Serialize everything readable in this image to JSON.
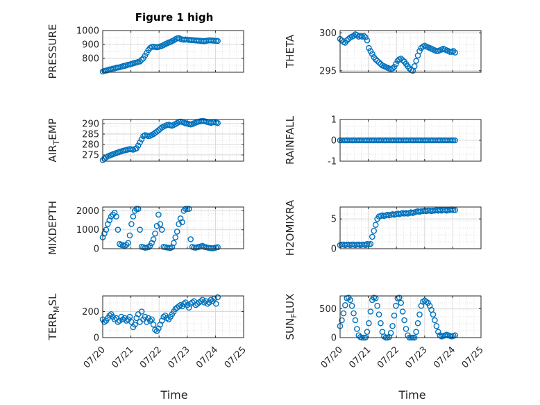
{
  "figure": {
    "title": "Figure 1 high",
    "xlabel": "Time"
  },
  "colors": {
    "marker": "#0072BD",
    "grid": "#d9d9d9",
    "axis": "#262626"
  },
  "chart_data": [
    {
      "type": "scatter",
      "panel": "pressure",
      "ylabel_main": "PRESSURE",
      "ylabel_sub": "",
      "ylabel_tail": "",
      "ylim": [
        700,
        1000
      ],
      "yticks": [
        "1000",
        "900",
        "800"
      ],
      "ytick_values": [
        1000,
        900,
        800
      ],
      "xlim": [
        0,
        5
      ],
      "xticks": [],
      "grid": true,
      "x": [
        0.0,
        0.06,
        0.12,
        0.18,
        0.24,
        0.3,
        0.36,
        0.42,
        0.48,
        0.54,
        0.6,
        0.66,
        0.72,
        0.78,
        0.84,
        0.9,
        0.96,
        1.02,
        1.08,
        1.14,
        1.2,
        1.26,
        1.32,
        1.38,
        1.44,
        1.5,
        1.56,
        1.62,
        1.68,
        1.74,
        1.8,
        1.86,
        1.92,
        1.98,
        2.04,
        2.1,
        2.16,
        2.22,
        2.28,
        2.34,
        2.4,
        2.46,
        2.52,
        2.58,
        2.64,
        2.7,
        2.76,
        2.82,
        2.88,
        2.94,
        3.0,
        3.06,
        3.12,
        3.18,
        3.24,
        3.3,
        3.36,
        3.42,
        3.48,
        3.54,
        3.6,
        3.66,
        3.72,
        3.78,
        3.84,
        3.9,
        3.96,
        4.02,
        4.08
      ],
      "y": [
        705,
        710,
        712,
        716,
        720,
        722,
        726,
        728,
        732,
        734,
        736,
        740,
        744,
        746,
        750,
        754,
        756,
        760,
        764,
        768,
        770,
        775,
        778,
        790,
        800,
        820,
        840,
        860,
        875,
        882,
        884,
        882,
        880,
        882,
        886,
        890,
        896,
        902,
        908,
        914,
        918,
        924,
        930,
        938,
        944,
        946,
        940,
        936,
        934,
        936,
        935,
        933,
        932,
        931,
        930,
        929,
        928,
        927,
        926,
        925,
        924,
        926,
        928,
        930,
        929,
        928,
        927,
        926,
        925
      ]
    },
    {
      "type": "scatter",
      "panel": "theta",
      "ylabel_main": "THETA",
      "ylabel_sub": "",
      "ylabel_tail": "",
      "ylim": [
        294.8,
        300.3
      ],
      "yticks": [
        "300",
        "295"
      ],
      "ytick_values": [
        300,
        295
      ],
      "xlim": [
        0,
        5
      ],
      "xticks": [],
      "grid": true,
      "x": [
        0.0,
        0.06,
        0.12,
        0.18,
        0.24,
        0.3,
        0.36,
        0.42,
        0.48,
        0.54,
        0.6,
        0.66,
        0.72,
        0.78,
        0.84,
        0.9,
        0.96,
        1.02,
        1.08,
        1.14,
        1.2,
        1.26,
        1.32,
        1.38,
        1.44,
        1.5,
        1.56,
        1.62,
        1.68,
        1.74,
        1.8,
        1.86,
        1.92,
        1.98,
        2.04,
        2.1,
        2.16,
        2.22,
        2.28,
        2.34,
        2.4,
        2.46,
        2.52,
        2.58,
        2.64,
        2.7,
        2.76,
        2.82,
        2.88,
        2.94,
        3.0,
        3.06,
        3.12,
        3.18,
        3.24,
        3.3,
        3.36,
        3.42,
        3.48,
        3.54,
        3.6,
        3.66,
        3.72,
        3.78,
        3.84,
        3.9,
        3.96,
        4.02,
        4.08
      ],
      "y": [
        299.2,
        299.0,
        298.8,
        298.7,
        299.0,
        299.2,
        299.4,
        299.5,
        299.6,
        299.8,
        299.7,
        299.5,
        299.6,
        299.5,
        299.6,
        299.4,
        299.0,
        298.0,
        297.6,
        297.2,
        296.8,
        296.5,
        296.3,
        296.1,
        295.9,
        295.7,
        295.6,
        295.5,
        295.4,
        295.3,
        295.2,
        295.3,
        295.5,
        295.9,
        296.3,
        296.5,
        296.6,
        296.4,
        296.2,
        295.9,
        295.6,
        295.3,
        295.1,
        295.0,
        295.6,
        296.3,
        297.0,
        297.6,
        298.0,
        298.2,
        298.3,
        298.2,
        298.1,
        298.0,
        297.9,
        297.8,
        297.7,
        297.6,
        297.6,
        297.7,
        297.8,
        297.9,
        297.8,
        297.7,
        297.6,
        297.5,
        297.5,
        297.6,
        297.4
      ]
    },
    {
      "type": "scatter",
      "panel": "air_temp",
      "ylabel_main": "AIR",
      "ylabel_sub": "T",
      "ylabel_tail": "EMP",
      "ylim": [
        272,
        292
      ],
      "yticks": [
        "290",
        "285",
        "280",
        "275"
      ],
      "ytick_values": [
        290,
        285,
        280,
        275
      ],
      "xlim": [
        0,
        5
      ],
      "xticks": [],
      "grid": true,
      "x": [
        0.0,
        0.06,
        0.12,
        0.18,
        0.24,
        0.3,
        0.36,
        0.42,
        0.48,
        0.54,
        0.6,
        0.66,
        0.72,
        0.78,
        0.84,
        0.9,
        0.96,
        1.02,
        1.08,
        1.14,
        1.2,
        1.26,
        1.32,
        1.38,
        1.44,
        1.5,
        1.56,
        1.62,
        1.68,
        1.74,
        1.8,
        1.86,
        1.92,
        1.98,
        2.04,
        2.1,
        2.16,
        2.22,
        2.28,
        2.34,
        2.4,
        2.46,
        2.52,
        2.58,
        2.64,
        2.7,
        2.76,
        2.82,
        2.88,
        2.94,
        3.0,
        3.06,
        3.12,
        3.18,
        3.24,
        3.3,
        3.36,
        3.42,
        3.48,
        3.54,
        3.6,
        3.66,
        3.72,
        3.78,
        3.84,
        3.9,
        3.96,
        4.02,
        4.08
      ],
      "y": [
        272.5,
        273.2,
        273.8,
        274.3,
        274.7,
        275.0,
        275.3,
        275.6,
        275.9,
        276.2,
        276.5,
        276.7,
        277.0,
        277.2,
        277.4,
        277.6,
        277.8,
        277.7,
        277.5,
        277.8,
        278.2,
        279.5,
        281.0,
        282.5,
        284.0,
        284.5,
        284.3,
        284.0,
        284.2,
        284.6,
        285.0,
        285.6,
        286.2,
        286.8,
        287.5,
        288.2,
        288.6,
        289.0,
        289.3,
        289.5,
        289.2,
        289.0,
        289.4,
        289.8,
        290.3,
        290.8,
        291.0,
        290.8,
        290.5,
        290.2,
        290.0,
        289.8,
        289.6,
        289.8,
        290.2,
        290.5,
        290.8,
        291.0,
        291.2,
        291.3,
        291.2,
        291.0,
        290.8,
        290.6,
        290.4,
        290.6,
        290.8,
        290.5,
        290.3
      ]
    },
    {
      "type": "scatter",
      "panel": "rainfall",
      "ylabel_main": "RAINFALL",
      "ylabel_sub": "",
      "ylabel_tail": "",
      "ylim": [
        -1,
        1
      ],
      "yticks": [
        "1",
        "0",
        "-1"
      ],
      "ytick_values": [
        1,
        0,
        -1
      ],
      "xlim": [
        0,
        5
      ],
      "xticks": [],
      "grid": true,
      "x": [
        0.0,
        0.06,
        0.12,
        0.18,
        0.24,
        0.3,
        0.36,
        0.42,
        0.48,
        0.54,
        0.6,
        0.66,
        0.72,
        0.78,
        0.84,
        0.9,
        0.96,
        1.02,
        1.08,
        1.14,
        1.2,
        1.26,
        1.32,
        1.38,
        1.44,
        1.5,
        1.56,
        1.62,
        1.68,
        1.74,
        1.8,
        1.86,
        1.92,
        1.98,
        2.04,
        2.1,
        2.16,
        2.22,
        2.28,
        2.34,
        2.4,
        2.46,
        2.52,
        2.58,
        2.64,
        2.7,
        2.76,
        2.82,
        2.88,
        2.94,
        3.0,
        3.06,
        3.12,
        3.18,
        3.24,
        3.3,
        3.36,
        3.42,
        3.48,
        3.54,
        3.6,
        3.66,
        3.72,
        3.78,
        3.84,
        3.9,
        3.96,
        4.02,
        4.08
      ],
      "y": [
        0,
        0,
        0,
        0,
        0,
        0,
        0,
        0,
        0,
        0,
        0,
        0,
        0,
        0,
        0,
        0,
        0,
        0,
        0,
        0,
        0,
        0,
        0,
        0,
        0,
        0,
        0,
        0,
        0,
        0,
        0,
        0,
        0,
        0,
        0,
        0,
        0,
        0,
        0,
        0,
        0,
        0,
        0,
        0,
        0,
        0,
        0,
        0,
        0,
        0,
        0,
        0,
        0,
        0,
        0,
        0,
        0,
        0,
        0,
        0,
        0,
        0,
        0,
        0,
        0,
        0,
        0,
        0,
        0
      ]
    },
    {
      "type": "scatter",
      "panel": "mixdepth",
      "ylabel_main": "MIXDEPTH",
      "ylabel_sub": "",
      "ylabel_tail": "",
      "ylim": [
        0,
        2200
      ],
      "yticks": [
        "2000",
        "1000",
        "0"
      ],
      "ytick_values": [
        2000,
        1000,
        0
      ],
      "xlim": [
        0,
        5
      ],
      "xticks": [],
      "grid": true,
      "x": [
        0.0,
        0.06,
        0.12,
        0.18,
        0.24,
        0.3,
        0.36,
        0.42,
        0.48,
        0.54,
        0.6,
        0.66,
        0.72,
        0.78,
        0.84,
        0.9,
        0.96,
        1.02,
        1.08,
        1.14,
        1.2,
        1.26,
        1.32,
        1.38,
        1.44,
        1.5,
        1.56,
        1.62,
        1.68,
        1.74,
        1.8,
        1.86,
        1.92,
        1.98,
        2.04,
        2.1,
        2.16,
        2.22,
        2.28,
        2.34,
        2.4,
        2.46,
        2.52,
        2.58,
        2.64,
        2.7,
        2.76,
        2.82,
        2.88,
        2.94,
        3.0,
        3.06,
        3.12,
        3.18,
        3.24,
        3.3,
        3.36,
        3.42,
        3.48,
        3.54,
        3.6,
        3.66,
        3.72,
        3.78,
        3.84,
        3.9,
        3.96,
        4.02,
        4.08
      ],
      "y": [
        600,
        800,
        1000,
        1300,
        1500,
        1700,
        1800,
        1900,
        1700,
        1000,
        250,
        200,
        180,
        150,
        200,
        300,
        700,
        1300,
        1700,
        2000,
        2100,
        2100,
        1000,
        100,
        80,
        50,
        60,
        80,
        150,
        300,
        500,
        800,
        1200,
        1800,
        1300,
        1000,
        100,
        80,
        60,
        50,
        40,
        80,
        300,
        600,
        900,
        1300,
        1600,
        1400,
        2000,
        2100,
        2100,
        2100,
        500,
        100,
        60,
        50,
        80,
        100,
        120,
        150,
        100,
        80,
        60,
        40,
        30,
        20,
        40,
        60,
        80
      ]
    },
    {
      "type": "scatter",
      "panel": "h2omixra",
      "ylabel_main": "H2OMIXRA",
      "ylabel_sub": "",
      "ylabel_tail": "",
      "ylim": [
        0,
        7
      ],
      "yticks": [
        "5",
        "0"
      ],
      "ytick_values": [
        5,
        0
      ],
      "xlim": [
        0,
        5
      ],
      "xticks": [],
      "grid": true,
      "x": [
        0.0,
        0.06,
        0.12,
        0.18,
        0.24,
        0.3,
        0.36,
        0.42,
        0.48,
        0.54,
        0.6,
        0.66,
        0.72,
        0.78,
        0.84,
        0.9,
        0.96,
        1.02,
        1.08,
        1.14,
        1.2,
        1.26,
        1.32,
        1.38,
        1.44,
        1.5,
        1.56,
        1.62,
        1.68,
        1.74,
        1.8,
        1.86,
        1.92,
        1.98,
        2.04,
        2.1,
        2.16,
        2.22,
        2.28,
        2.34,
        2.4,
        2.46,
        2.52,
        2.58,
        2.64,
        2.7,
        2.76,
        2.82,
        2.88,
        2.94,
        3.0,
        3.06,
        3.12,
        3.18,
        3.24,
        3.3,
        3.36,
        3.42,
        3.48,
        3.54,
        3.6,
        3.66,
        3.72,
        3.78,
        3.84,
        3.9,
        3.96,
        4.02,
        4.08
      ],
      "y": [
        0.6,
        0.7,
        0.7,
        0.6,
        0.7,
        0.7,
        0.6,
        0.7,
        0.7,
        0.6,
        0.7,
        0.7,
        0.6,
        0.7,
        0.7,
        0.6,
        0.8,
        0.7,
        0.8,
        2.0,
        3.0,
        4.0,
        5.0,
        5.4,
        5.5,
        5.6,
        5.5,
        5.6,
        5.7,
        5.6,
        5.7,
        5.8,
        5.7,
        5.8,
        5.9,
        5.8,
        5.9,
        6.0,
        5.9,
        6.0,
        5.9,
        6.0,
        6.1,
        6.0,
        6.1,
        6.2,
        6.3,
        6.2,
        6.3,
        6.3,
        6.4,
        6.3,
        6.4,
        6.4,
        6.3,
        6.4,
        6.4,
        6.5,
        6.4,
        6.5,
        6.4,
        6.5,
        6.5,
        6.4,
        6.5,
        6.5,
        6.6,
        6.5,
        6.5
      ]
    },
    {
      "type": "scatter",
      "panel": "terr_msl",
      "ylabel_main": "TERR",
      "ylabel_sub": "M",
      "ylabel_tail": "SL",
      "ylim": [
        0,
        320
      ],
      "yticks": [
        "200",
        "0"
      ],
      "ytick_values": [
        200,
        0
      ],
      "xlim": [
        0,
        5
      ],
      "xticks": [
        "07/20",
        "07/21",
        "07/22",
        "07/23",
        "07/24",
        "07/25"
      ],
      "xtick_values": [
        0,
        1,
        2,
        3,
        4,
        5
      ],
      "grid": true,
      "x": [
        0.0,
        0.06,
        0.12,
        0.18,
        0.24,
        0.3,
        0.36,
        0.42,
        0.48,
        0.54,
        0.6,
        0.66,
        0.72,
        0.78,
        0.84,
        0.9,
        0.96,
        1.02,
        1.08,
        1.14,
        1.2,
        1.26,
        1.32,
        1.38,
        1.44,
        1.5,
        1.56,
        1.62,
        1.68,
        1.74,
        1.8,
        1.86,
        1.92,
        1.98,
        2.04,
        2.1,
        2.16,
        2.22,
        2.28,
        2.34,
        2.4,
        2.46,
        2.52,
        2.58,
        2.64,
        2.7,
        2.76,
        2.82,
        2.88,
        2.94,
        3.0,
        3.06,
        3.12,
        3.18,
        3.24,
        3.3,
        3.36,
        3.42,
        3.48,
        3.54,
        3.6,
        3.66,
        3.72,
        3.78,
        3.84,
        3.9,
        3.96,
        4.02,
        4.08
      ],
      "y": [
        140,
        120,
        130,
        150,
        170,
        180,
        160,
        140,
        150,
        120,
        130,
        160,
        140,
        150,
        130,
        140,
        160,
        120,
        80,
        100,
        150,
        180,
        120,
        200,
        140,
        160,
        120,
        150,
        130,
        140,
        100,
        60,
        50,
        70,
        100,
        130,
        160,
        170,
        150,
        140,
        160,
        180,
        200,
        220,
        230,
        240,
        250,
        240,
        260,
        270,
        250,
        230,
        260,
        270,
        280,
        250,
        260,
        270,
        280,
        290,
        270,
        280,
        260,
        270,
        290,
        280,
        300,
        260,
        310
      ]
    },
    {
      "type": "scatter",
      "panel": "sun_flux",
      "ylabel_main": "SUN",
      "ylabel_sub": "F",
      "ylabel_tail": "LUX",
      "ylim": [
        0,
        720
      ],
      "yticks": [
        "500",
        "0"
      ],
      "ytick_values": [
        500,
        0
      ],
      "xlim": [
        0,
        5
      ],
      "xticks": [
        "07/20",
        "07/21",
        "07/22",
        "07/23",
        "07/24",
        "07/25"
      ],
      "xtick_values": [
        0,
        1,
        2,
        3,
        4,
        5
      ],
      "grid": true,
      "x": [
        0.0,
        0.06,
        0.12,
        0.18,
        0.24,
        0.3,
        0.36,
        0.42,
        0.48,
        0.54,
        0.6,
        0.66,
        0.72,
        0.78,
        0.84,
        0.9,
        0.96,
        1.02,
        1.08,
        1.14,
        1.2,
        1.26,
        1.32,
        1.38,
        1.44,
        1.5,
        1.56,
        1.62,
        1.68,
        1.74,
        1.8,
        1.86,
        1.92,
        1.98,
        2.04,
        2.1,
        2.16,
        2.22,
        2.28,
        2.34,
        2.4,
        2.46,
        2.52,
        2.58,
        2.64,
        2.7,
        2.76,
        2.82,
        2.88,
        2.94,
        3.0,
        3.06,
        3.12,
        3.18,
        3.24,
        3.3,
        3.36,
        3.42,
        3.48,
        3.54,
        3.6,
        3.66,
        3.72,
        3.78,
        3.84,
        3.9,
        3.96,
        4.02,
        4.08
      ],
      "y": [
        200,
        300,
        420,
        560,
        680,
        690,
        650,
        550,
        420,
        300,
        150,
        40,
        10,
        0,
        0,
        0,
        100,
        250,
        450,
        650,
        690,
        680,
        550,
        400,
        250,
        100,
        20,
        0,
        0,
        10,
        80,
        200,
        380,
        550,
        680,
        690,
        600,
        450,
        300,
        150,
        40,
        0,
        0,
        0,
        0,
        100,
        250,
        400,
        550,
        620,
        640,
        620,
        600,
        550,
        480,
        400,
        300,
        200,
        100,
        40,
        20,
        30,
        40,
        50,
        40,
        30,
        20,
        30,
        40
      ]
    }
  ]
}
